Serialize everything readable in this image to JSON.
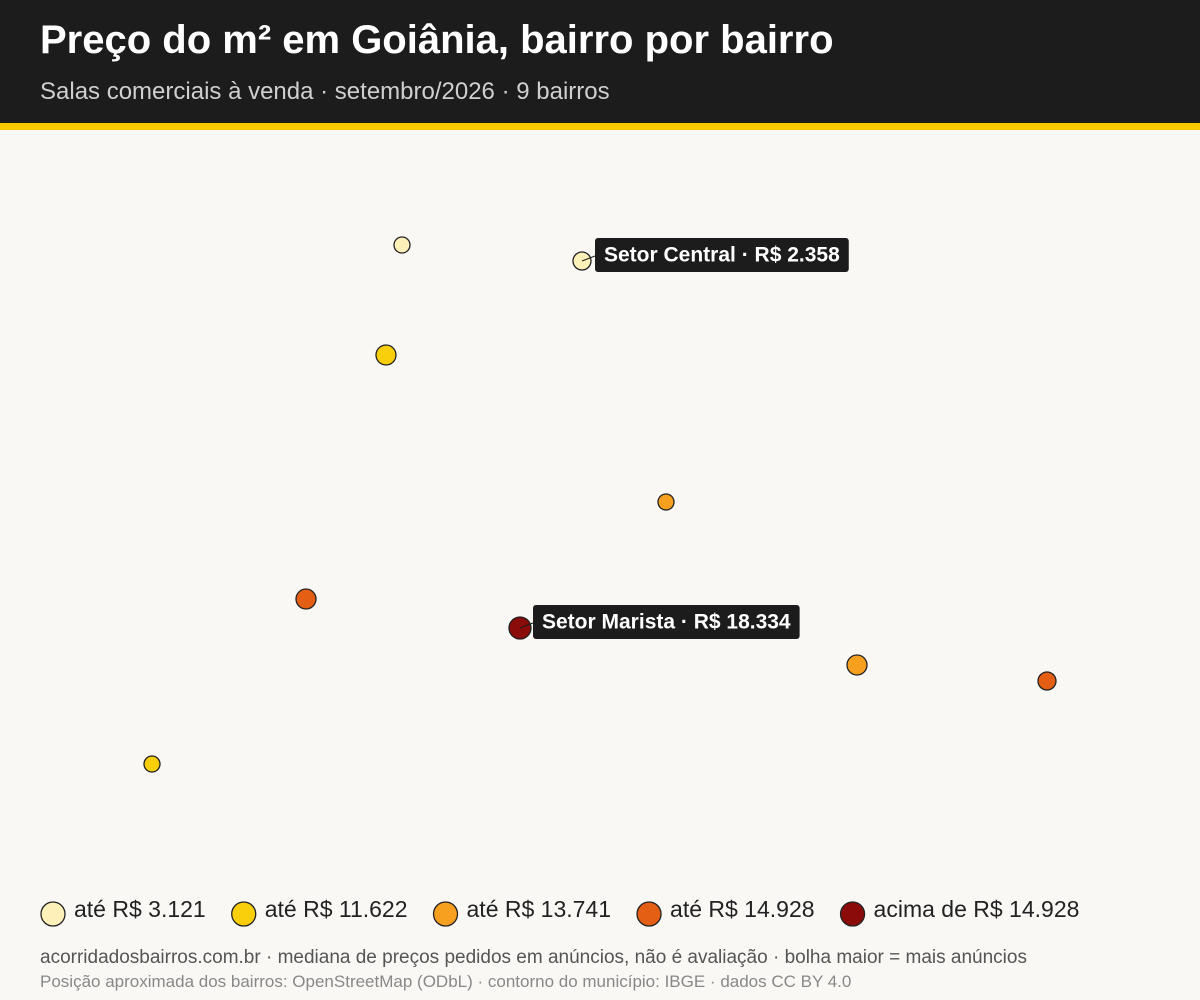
{
  "header": {
    "title": "Preço do m² em Goiânia, bairro por bairro",
    "subtitle": "Salas comerciais à venda · setembro/2026 · 9 bairros"
  },
  "bubbles": [
    {
      "color": "#fdf0b9"
    },
    {
      "color": "#fdf0b9",
      "label": "Setor Central · R$ 2.358"
    },
    {
      "color": "#f9cf0c"
    },
    {
      "color": "#f7a020"
    },
    {
      "color": "#e45f14"
    },
    {
      "color": "#8b0a0a",
      "label": "Setor Marista · R$ 18.334"
    },
    {
      "color": "#f7a020"
    },
    {
      "color": "#e45f14"
    },
    {
      "color": "#f9cf0c"
    }
  ],
  "legend": [
    {
      "label": "até R$ 3.121",
      "color": "#fdf0b9"
    },
    {
      "label": "até R$ 11.622",
      "color": "#f9cf0c"
    },
    {
      "label": "até R$ 13.741",
      "color": "#f7a020"
    },
    {
      "label": "até R$ 14.928",
      "color": "#e45f14"
    },
    {
      "label": "acima de R$ 14.928",
      "color": "#8b0a0a"
    }
  ],
  "footer": {
    "note": "acorridadosbairros.com.br · mediana de preços pedidos em anúncios, não é avaliação · bolha maior = mais anúncios",
    "credits": "Posição aproximada dos bairros: OpenStreetMap (ODbL) · contorno do município: IBGE · dados CC BY 4.0"
  }
}
